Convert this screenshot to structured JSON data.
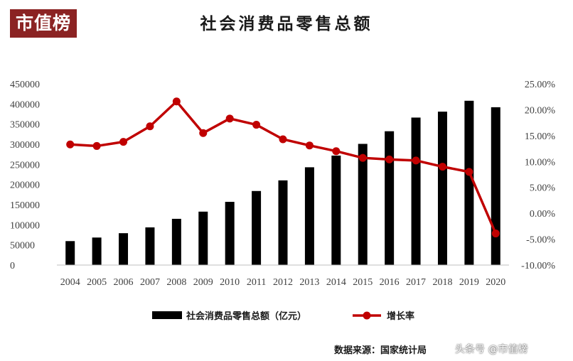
{
  "logo": "市值榜",
  "watermark": "头条号 @市值榜",
  "source": "数据来源：国家统计局",
  "colors": {
    "bar": "#000000",
    "line": "#c00000",
    "logo_bg": "#8b2323",
    "axis_text": "#404040"
  },
  "chart_data": {
    "type": "bar",
    "title": "社会消费品零售总额",
    "categories": [
      "2004",
      "2005",
      "2006",
      "2007",
      "2008",
      "2009",
      "2010",
      "2011",
      "2012",
      "2013",
      "2014",
      "2015",
      "2016",
      "2017",
      "2018",
      "2019",
      "2020"
    ],
    "series": [
      {
        "name": "社会消费品零售总额（亿元）",
        "type": "bar",
        "axis": "left",
        "values": [
          59501,
          68353,
          79145,
          93572,
          114830,
          132678,
          156998,
          183919,
          210307,
          242843,
          271896,
          300931,
          332316,
          366262,
          380987,
          408017,
          391981
        ]
      },
      {
        "name": "增长率",
        "type": "line",
        "axis": "right",
        "values": [
          13.3,
          13.0,
          13.8,
          16.8,
          21.6,
          15.5,
          18.3,
          17.1,
          14.3,
          13.1,
          12.0,
          10.7,
          10.4,
          10.2,
          9.0,
          8.0,
          -3.9
        ]
      }
    ],
    "y_left": {
      "min": 0,
      "max": 450000,
      "ticks": [
        "0",
        "50000",
        "100000",
        "150000",
        "200000",
        "250000",
        "300000",
        "350000",
        "400000",
        "450000"
      ]
    },
    "y_right": {
      "min": -10,
      "max": 25,
      "ticks": [
        "-10.00%",
        "-5.00%",
        "0.00%",
        "5.00%",
        "10.00%",
        "15.00%",
        "20.00%",
        "25.00%"
      ]
    },
    "grid": false,
    "legend_position": "bottom"
  }
}
